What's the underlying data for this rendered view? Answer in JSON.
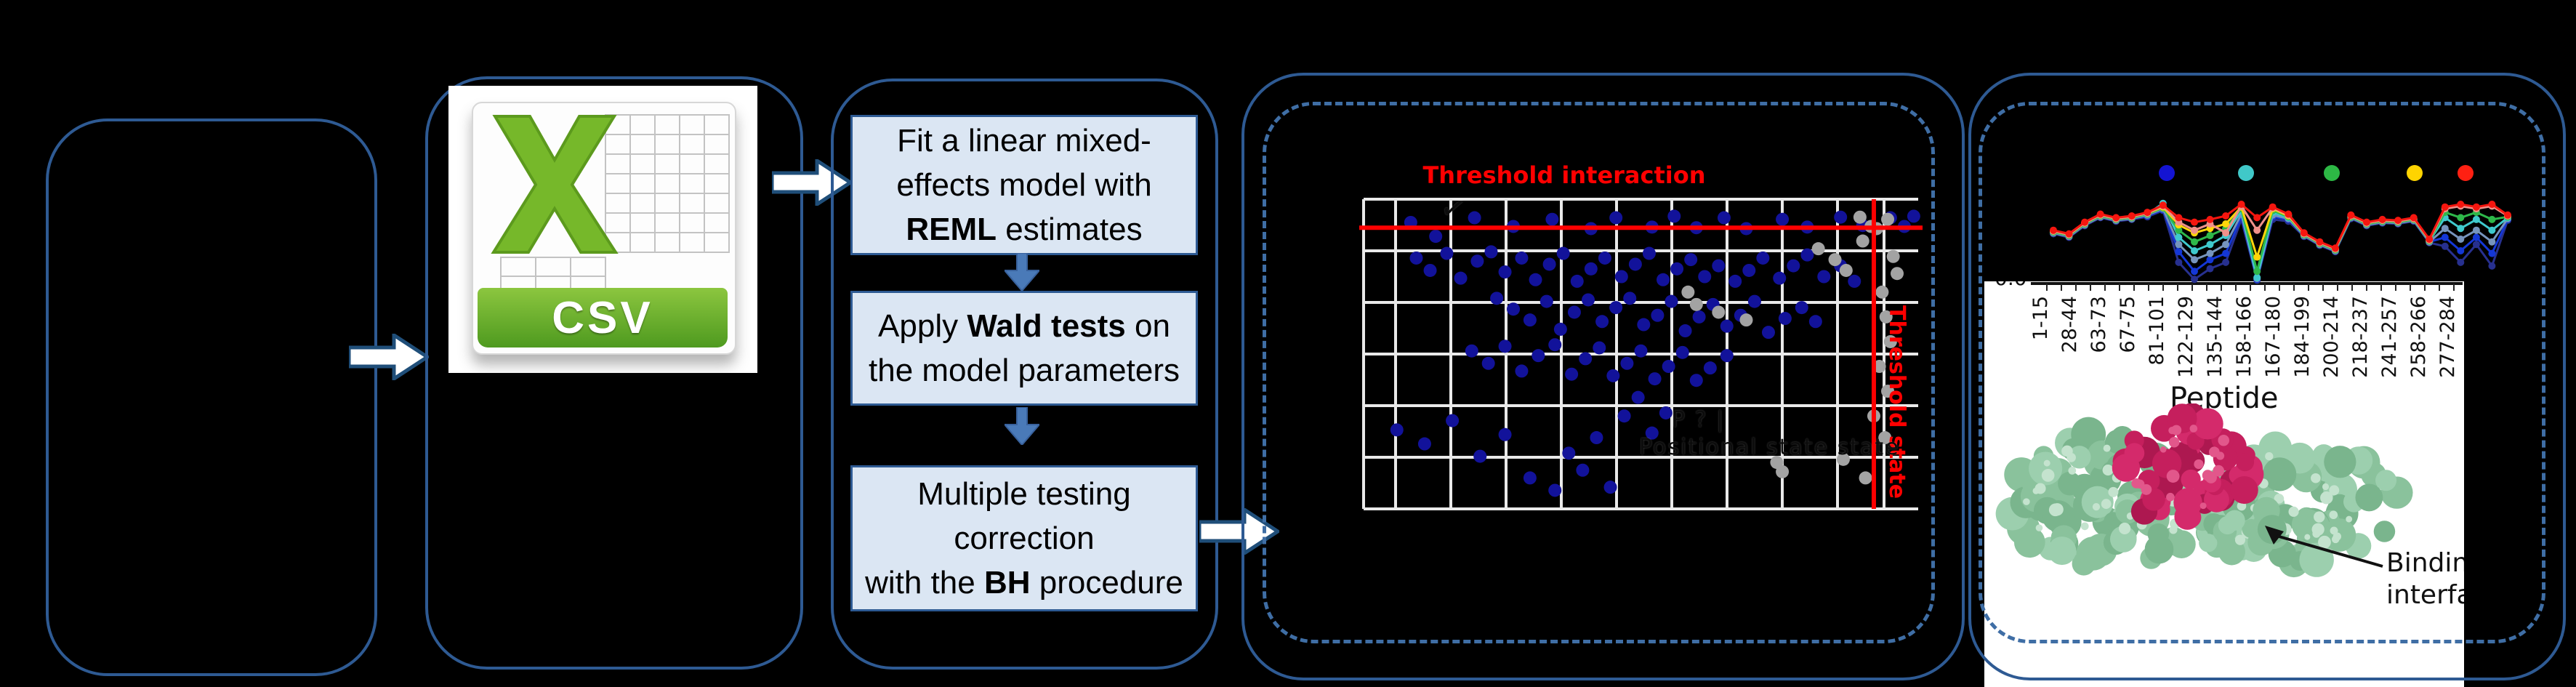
{
  "panels": {
    "p1": {
      "note": ""
    },
    "p2": {
      "csv_label": "CSV"
    },
    "p3": {
      "steps": [
        {
          "lines": [
            "Fit a linear mixed-",
            "effects model with",
            {
              "b": "REML",
              "t": " estimates"
            }
          ]
        },
        {
          "lines": [
            {
              "t": "Apply ",
              "b": "Wald tests",
              "t2": " on"
            },
            "the model parameters"
          ]
        },
        {
          "lines": [
            "Multiple testing",
            "correction",
            {
              "t": "with the ",
              "b": "BH",
              "t2": " procedure"
            }
          ]
        }
      ]
    },
    "p4": {
      "threshold_interaction_label": "Threshold interaction",
      "threshold_state_label": "Threshold state",
      "ghost_line1": "P      ?      |",
      "ghost_line2": "Positional state  state",
      "ghost_mark": "✓",
      "chart_data": {
        "type": "scatter",
        "title": "Threshold interaction",
        "xlabel": "",
        "ylabel": "",
        "grid": true,
        "threshold_h_frac": 0.092,
        "threshold_v_frac": 0.92,
        "point_color_blue": "#12129a",
        "point_color_gray": "#a3a3a3",
        "line_color": "#ff0000",
        "grid_color": "#e9e9e9",
        "blue_points_permille": [
          [
            85,
            75
          ],
          [
            130,
            120
          ],
          [
            200,
            60
          ],
          [
            270,
            88
          ],
          [
            340,
            65
          ],
          [
            410,
            95
          ],
          [
            455,
            60
          ],
          [
            520,
            90
          ],
          [
            560,
            55
          ],
          [
            600,
            92
          ],
          [
            650,
            60
          ],
          [
            690,
            95
          ],
          [
            755,
            65
          ],
          [
            800,
            90
          ],
          [
            860,
            58
          ],
          [
            900,
            85
          ],
          [
            950,
            60
          ],
          [
            975,
            88
          ],
          [
            992,
            55
          ],
          [
            95,
            190
          ],
          [
            120,
            230
          ],
          [
            150,
            175
          ],
          [
            175,
            255
          ],
          [
            205,
            200
          ],
          [
            230,
            170
          ],
          [
            255,
            235
          ],
          [
            285,
            190
          ],
          [
            310,
            260
          ],
          [
            335,
            210
          ],
          [
            360,
            175
          ],
          [
            385,
            265
          ],
          [
            410,
            225
          ],
          [
            435,
            190
          ],
          [
            465,
            250
          ],
          [
            490,
            210
          ],
          [
            515,
            175
          ],
          [
            540,
            260
          ],
          [
            565,
            225
          ],
          [
            590,
            195
          ],
          [
            615,
            250
          ],
          [
            640,
            215
          ],
          [
            670,
            265
          ],
          [
            695,
            230
          ],
          [
            720,
            190
          ],
          [
            750,
            255
          ],
          [
            775,
            215
          ],
          [
            800,
            180
          ],
          [
            830,
            250
          ],
          [
            860,
            215
          ],
          [
            885,
            265
          ],
          [
            240,
            320
          ],
          [
            270,
            355
          ],
          [
            300,
            390
          ],
          [
            330,
            330
          ],
          [
            355,
            420
          ],
          [
            380,
            365
          ],
          [
            405,
            325
          ],
          [
            430,
            395
          ],
          [
            455,
            350
          ],
          [
            480,
            320
          ],
          [
            505,
            405
          ],
          [
            530,
            375
          ],
          [
            555,
            330
          ],
          [
            580,
            425
          ],
          [
            605,
            380
          ],
          [
            630,
            340
          ],
          [
            655,
            410
          ],
          [
            680,
            375
          ],
          [
            705,
            330
          ],
          [
            730,
            430
          ],
          [
            760,
            385
          ],
          [
            790,
            350
          ],
          [
            815,
            395
          ],
          [
            195,
            490
          ],
          [
            225,
            530
          ],
          [
            255,
            475
          ],
          [
            285,
            555
          ],
          [
            315,
            505
          ],
          [
            345,
            470
          ],
          [
            375,
            565
          ],
          [
            400,
            515
          ],
          [
            425,
            480
          ],
          [
            450,
            570
          ],
          [
            475,
            530
          ],
          [
            500,
            490
          ],
          [
            525,
            580
          ],
          [
            550,
            540
          ],
          [
            575,
            495
          ],
          [
            600,
            585
          ],
          [
            625,
            545
          ],
          [
            655,
            505
          ],
          [
            60,
            745
          ],
          [
            110,
            790
          ],
          [
            160,
            715
          ],
          [
            210,
            830
          ],
          [
            255,
            760
          ],
          [
            300,
            900
          ],
          [
            345,
            940
          ],
          [
            370,
            820
          ],
          [
            395,
            875
          ],
          [
            420,
            770
          ],
          [
            445,
            930
          ],
          [
            470,
            700
          ],
          [
            495,
            640
          ],
          [
            520,
            755
          ],
          [
            545,
            690
          ]
        ],
        "gray_points_permille": [
          [
            585,
            300
          ],
          [
            600,
            340
          ],
          [
            640,
            365
          ],
          [
            690,
            390
          ],
          [
            820,
            160
          ],
          [
            850,
            195
          ],
          [
            870,
            230
          ],
          [
            900,
            135
          ],
          [
            925,
            95
          ],
          [
            945,
            65
          ],
          [
            895,
            58
          ],
          [
            915,
            88
          ],
          [
            955,
            185
          ],
          [
            962,
            240
          ],
          [
            935,
            300
          ],
          [
            942,
            380
          ],
          [
            950,
            460
          ],
          [
            930,
            540
          ],
          [
            945,
            620
          ],
          [
            920,
            700
          ],
          [
            940,
            770
          ],
          [
            865,
            840
          ],
          [
            905,
            900
          ],
          [
            755,
            880
          ],
          [
            745,
            850
          ]
        ]
      }
    },
    "p5": {
      "xlabel": "Peptide",
      "ytick0": "0.0",
      "binding_line1": "Binding",
      "binding_line2": "interface",
      "chart_data": {
        "type": "line",
        "xlabel": "Peptide",
        "ylabel": "",
        "categories": [
          "1-15",
          "28-44",
          "63-73",
          "67-75",
          "81-101",
          "122-129",
          "135-144",
          "158-166",
          "167-180",
          "184-199",
          "200-214",
          "218-237",
          "241-257",
          "258-266",
          "277-284"
        ],
        "legend_dot_colors": [
          "#1414d2",
          "#40c8c8",
          "#2db845",
          "#ffd400",
          "#ff2012"
        ],
        "series": [
          {
            "name": "navy",
            "color": "#27308f",
            "values": [
              0.46,
              0.5,
              0.37,
              0.28,
              0.32,
              0.3,
              0.27,
              0.2,
              0.78,
              0.97,
              0.85,
              0.78,
              0.3,
              0.98,
              0.3,
              0.32,
              0.49,
              0.59,
              0.66,
              0.29,
              0.37,
              0.34,
              0.35,
              0.32,
              0.56,
              0.6,
              0.78,
              0.58,
              0.82,
              0.31
            ]
          },
          {
            "name": "blue",
            "color": "#1437d6",
            "values": [
              0.45,
              0.49,
              0.36,
              0.27,
              0.31,
              0.29,
              0.26,
              0.19,
              0.66,
              0.88,
              0.75,
              0.68,
              0.27,
              0.97,
              0.27,
              0.3,
              0.48,
              0.58,
              0.65,
              0.28,
              0.36,
              0.33,
              0.34,
              0.31,
              0.55,
              0.5,
              0.65,
              0.5,
              0.68,
              0.3
            ]
          },
          {
            "name": "steel",
            "color": "#7694bd",
            "values": [
              0.45,
              0.49,
              0.36,
              0.27,
              0.31,
              0.29,
              0.25,
              0.18,
              0.58,
              0.75,
              0.68,
              0.58,
              0.24,
              0.96,
              0.25,
              0.29,
              0.48,
              0.58,
              0.65,
              0.28,
              0.36,
              0.33,
              0.34,
              0.31,
              0.55,
              0.4,
              0.52,
              0.42,
              0.55,
              0.29
            ]
          },
          {
            "name": "cyan",
            "color": "#3fc9cd",
            "values": [
              0.44,
              0.48,
              0.35,
              0.26,
              0.3,
              0.28,
              0.24,
              0.12,
              0.5,
              0.65,
              0.58,
              0.48,
              0.2,
              0.95,
              0.22,
              0.28,
              0.47,
              0.57,
              0.64,
              0.27,
              0.35,
              0.32,
              0.33,
              0.3,
              0.54,
              0.28,
              0.4,
              0.3,
              0.42,
              0.28
            ]
          },
          {
            "name": "green",
            "color": "#2eb84a",
            "values": [
              0.44,
              0.48,
              0.35,
              0.26,
              0.3,
              0.28,
              0.24,
              0.17,
              0.42,
              0.55,
              0.48,
              0.4,
              0.18,
              0.88,
              0.2,
              0.27,
              0.47,
              0.57,
              0.64,
              0.27,
              0.35,
              0.32,
              0.33,
              0.3,
              0.54,
              0.22,
              0.28,
              0.22,
              0.3,
              0.27
            ]
          },
          {
            "name": "yellow",
            "color": "#ffd60a",
            "values": [
              0.43,
              0.47,
              0.34,
              0.25,
              0.29,
              0.27,
              0.23,
              0.16,
              0.36,
              0.45,
              0.4,
              0.35,
              0.16,
              0.72,
              0.18,
              0.26,
              0.46,
              0.56,
              0.63,
              0.26,
              0.34,
              0.31,
              0.32,
              0.29,
              0.53,
              0.17,
              0.14,
              0.17,
              0.14,
              0.26
            ]
          },
          {
            "name": "salmon",
            "color": "#f0918a",
            "values": [
              0.43,
              0.47,
              0.34,
              0.25,
              0.29,
              0.27,
              0.23,
              0.15,
              0.33,
              0.42,
              0.35,
              0.45,
              0.15,
              0.42,
              0.17,
              0.25,
              0.46,
              0.56,
              0.63,
              0.26,
              0.34,
              0.31,
              0.32,
              0.29,
              0.53,
              0.18,
              0.15,
              0.18,
              0.15,
              0.26
            ]
          },
          {
            "name": "red",
            "color": "#f5160f",
            "values": [
              0.42,
              0.46,
              0.33,
              0.24,
              0.28,
              0.26,
              0.22,
              0.14,
              0.28,
              0.33,
              0.3,
              0.26,
              0.13,
              0.28,
              0.16,
              0.24,
              0.45,
              0.55,
              0.62,
              0.25,
              0.33,
              0.3,
              0.31,
              0.28,
              0.52,
              0.16,
              0.13,
              0.16,
              0.13,
              0.25
            ]
          }
        ]
      },
      "protein_colors": {
        "green_base": [
          "#9ccfae",
          "#8ac29c",
          "#7ab58d"
        ],
        "green_light": "#c4e3ce",
        "crimson_base": [
          "#c51f5d",
          "#d42a6b",
          "#ad1850"
        ],
        "crimson_light": "#e2578b"
      }
    }
  },
  "colors": {
    "panel_border": "#2e5a93",
    "dashed_border": "#3f6ea5",
    "step_fill": "#dbe6f3",
    "flow_arrow_fill": "#ffffff",
    "flow_arrow_stroke": "#1f4e79",
    "down_arrow": "#4a7ab8",
    "csv_green": "#6ab02c",
    "red": "#ff0000"
  }
}
